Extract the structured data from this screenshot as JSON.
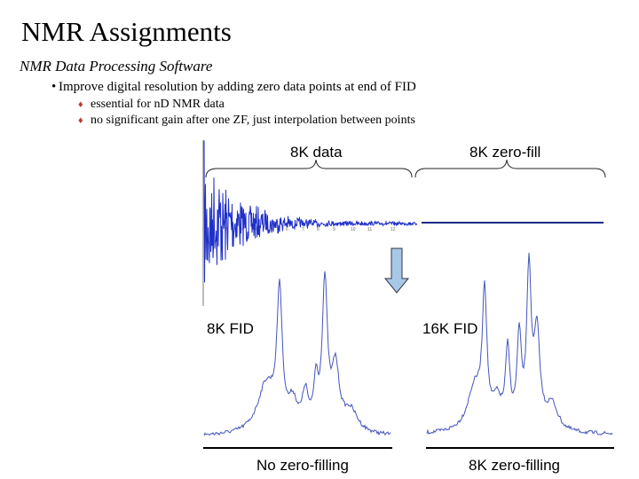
{
  "slide": {
    "title": "NMR Assignments",
    "subtitle": "NMR Data Processing Software",
    "bullet": "Improve digital resolution by adding zero data points at end of FID",
    "sub_bullets": [
      "essential for nD NMR data",
      "no significant gain after one ZF, just interpolation between points"
    ]
  },
  "figure": {
    "label_8k_data": "8K data",
    "label_8k_zerofill": "8K zero-fill",
    "label_8k_fid": "8K FID",
    "label_16k_fid": "16K FID",
    "caption_left": "No zero-filling",
    "caption_right": "8K zero-filling",
    "colors": {
      "fid": "#1f2fc8",
      "spectrum": "#4455bb",
      "arrow_fill": "#a8c8e8",
      "bullet_diamond": "#c0392b"
    }
  }
}
